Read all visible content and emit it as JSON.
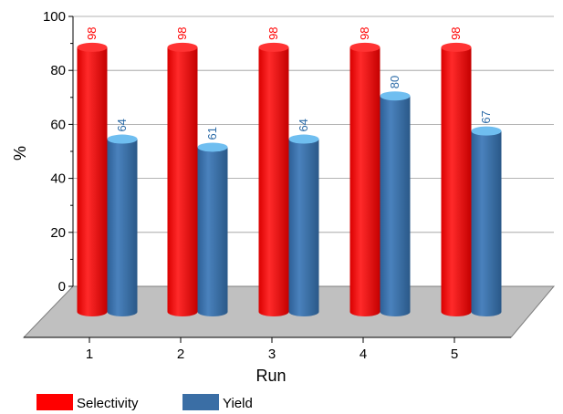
{
  "chart_data": {
    "type": "bar",
    "categories": [
      "1",
      "2",
      "3",
      "4",
      "5"
    ],
    "series": [
      {
        "name": "Selectivity",
        "values": [
          98,
          98,
          98,
          98,
          98
        ],
        "color": "#ff0000"
      },
      {
        "name": "Yield",
        "values": [
          64,
          61,
          64,
          80,
          67
        ],
        "color": "#3a6ea5"
      }
    ],
    "xlabel": "Run",
    "ylabel": "%",
    "ylim": [
      0,
      100
    ],
    "yticks": [
      "0",
      "20",
      "40",
      "60",
      "80",
      "100"
    ],
    "grid": true,
    "legend_position": "bottom-left",
    "style": "3d-cylinder"
  }
}
